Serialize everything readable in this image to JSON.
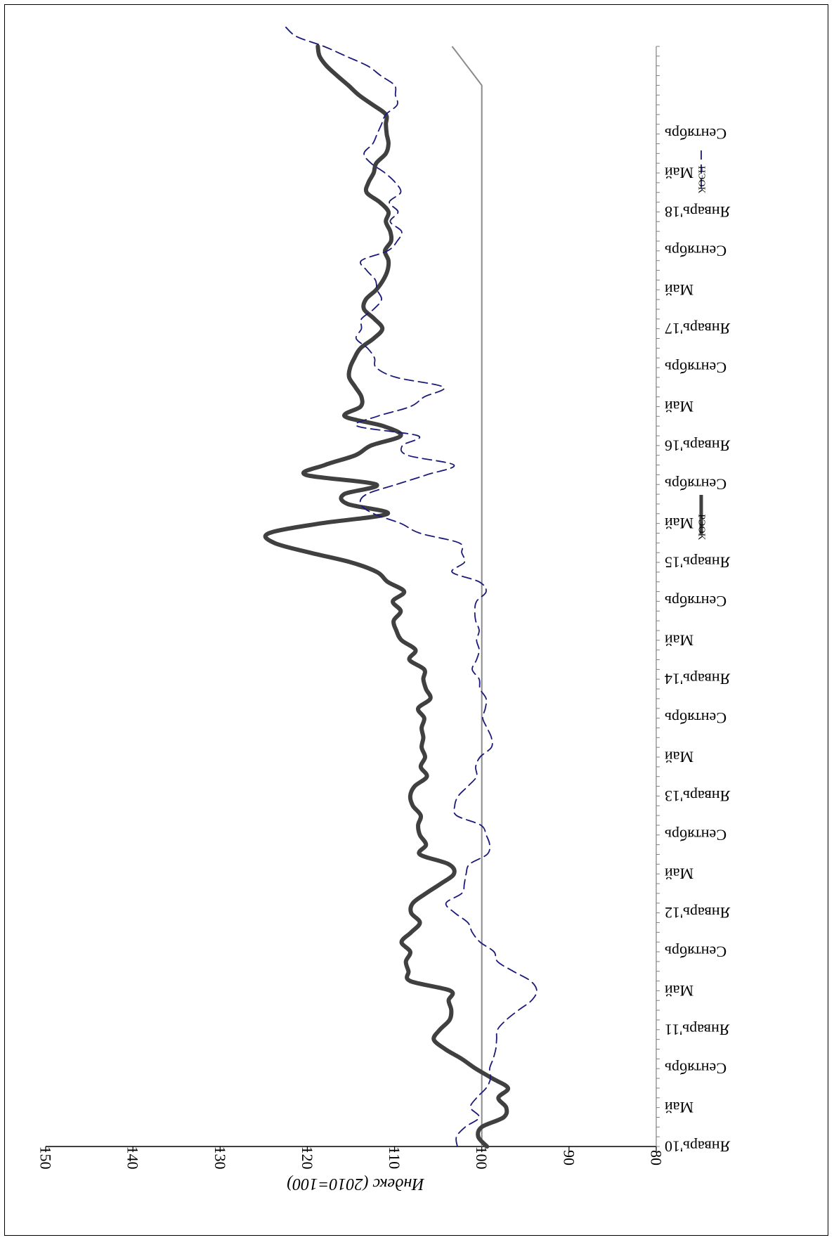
{
  "chart_data": {
    "type": "line",
    "orientation": "rotated-180 (upside-down)",
    "ylabel": "Индекс (2010=100)",
    "xlabel": "",
    "ylim": [
      80,
      150
    ],
    "y_ticks": [
      "80",
      "90",
      "100",
      "110",
      "120",
      "130",
      "140",
      "150"
    ],
    "x_tick_labels": [
      "Январь'10",
      "Май",
      "Сентябрь",
      "Январь'11",
      "Май",
      "Сентябрь",
      "Январь'12",
      "Май",
      "Сентябрь",
      "Январь'13",
      "Май",
      "Сентябрь",
      "Январь'14",
      "Май",
      "Сентябрь",
      "Январь'15",
      "Май",
      "Сентябрь",
      "Январь'16",
      "Май",
      "Сентябрь",
      "Январь'17",
      "Май",
      "Сентябрь",
      "Январь'18",
      "Май",
      "Сентябрь"
    ],
    "grid": false,
    "legend": "bottom (upside-down)",
    "series": [
      {
        "name": "РЭОК",
        "color": "#404040",
        "style": "solid-thick",
        "values": [
          99.4,
          100.4,
          100,
          97.5,
          97.2,
          98.1,
          97,
          98.8,
          100.7,
          102.3,
          104.2,
          105.5,
          104.8,
          103.7,
          103.5,
          103.8,
          103.6,
          108.2,
          108.4,
          108.7,
          108.2,
          109.2,
          108.1,
          107.1,
          108.1,
          107.9,
          106.4,
          104.7,
          103.2,
          103.8,
          107.1,
          106.4,
          107.1,
          107.3,
          107,
          107.9,
          108.2,
          107.7,
          106.3,
          107,
          106.5,
          106.9,
          106.7,
          106.9,
          106.6,
          107.3,
          105.9,
          106.4,
          106.7,
          106.6,
          108.3,
          107.6,
          109.2,
          109.8,
          110.1,
          109.3,
          110.2,
          108.9,
          110.8,
          112,
          115,
          119.7,
          123.8,
          124.4,
          118.5,
          110.8,
          115.4,
          115.8,
          112.1,
          120.2,
          118,
          114.5,
          112.7,
          109.3,
          111.3,
          115.7,
          113.9,
          113.8,
          114.5,
          115.2,
          115.1,
          114.6,
          113.9,
          112.4,
          111.4,
          112.3,
          113.5,
          113.3,
          112.1,
          111.3,
          110.8,
          110.7,
          111.1,
          110.4,
          110.5,
          111,
          110.7,
          111.7,
          113.2,
          113,
          112.4,
          112.1,
          111,
          110.7,
          110.9,
          111,
          111,
          112.5,
          114.1,
          115.3,
          116.6,
          117.8,
          118.6,
          118.8
        ]
      },
      {
        "name": "НЭОК",
        "color": "#1a1a7a",
        "style": "dashed",
        "values": [
          102.8,
          102.9,
          101.9,
          100.3,
          101.3,
          100.6,
          99.5,
          99,
          99.1,
          98.7,
          98.4,
          98.3,
          98.2,
          97.2,
          95.8,
          94.3,
          93.7,
          94.4,
          96.4,
          98.2,
          98.6,
          100.2,
          101.1,
          101.6,
          103.1,
          104.1,
          102.3,
          102,
          101.8,
          101.4,
          99.4,
          99.1,
          99.5,
          100.1,
          102.9,
          103.1,
          102.7,
          101.6,
          100.6,
          100.7,
          100.2,
          98.9,
          98.9,
          99.4,
          99.9,
          99.6,
          99.5,
          100.2,
          100.3,
          101.1,
          100.6,
          100.3,
          100.6,
          100.3,
          100.7,
          100.8,
          100.6,
          99.5,
          100.3,
          103.4,
          102,
          102.3,
          102.6,
          107.1,
          109.3,
          112.4,
          113.9,
          113.2,
          109.8,
          106.3,
          103.2,
          108.5,
          109.1,
          107.3,
          114.3,
          112,
          108.2,
          106.6,
          104.4,
          109.8,
          112.1,
          112.3,
          113.1,
          114.4,
          113.8,
          113.8,
          112.4,
          111.5,
          112,
          112.2,
          113.2,
          113.8,
          110.8,
          109.7,
          109.2,
          110.5,
          109.6,
          110.6,
          109.3,
          109.9,
          111.1,
          112.7,
          113.5,
          112.5,
          112,
          111.5,
          111,
          109.7,
          109.9,
          110,
          111.6,
          113.1,
          115.6,
          118.1,
          121.2,
          122.5
        ]
      }
    ]
  }
}
